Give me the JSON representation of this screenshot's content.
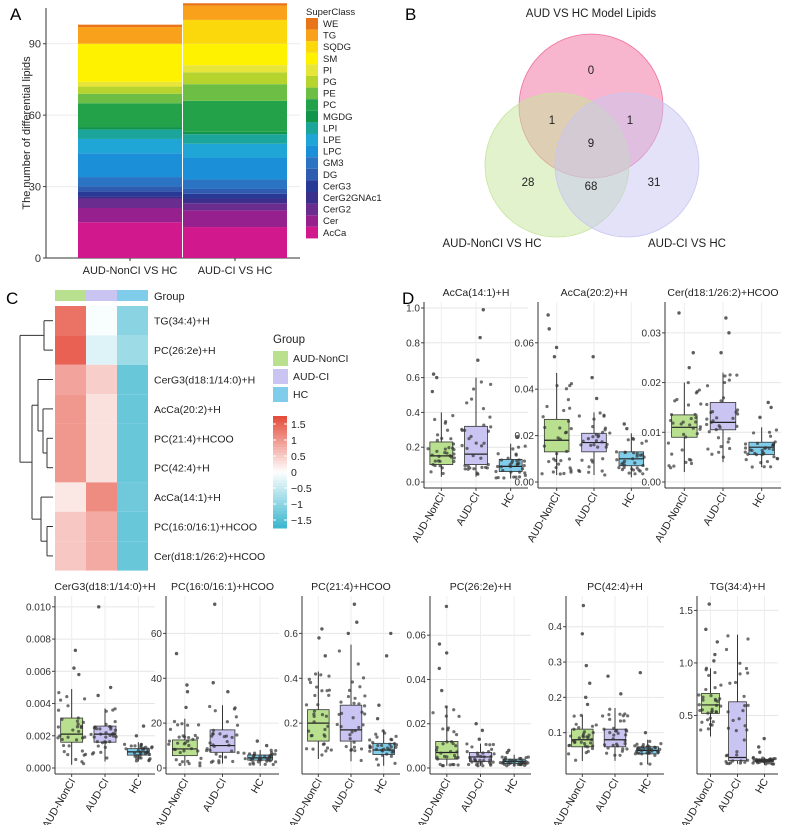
{
  "panel_labels": [
    "A",
    "B",
    "C",
    "D"
  ],
  "chart_data": [
    {
      "id": "A",
      "type": "bar",
      "subtype": "stacked",
      "ylabel": "The number of differential lipids",
      "xlabel": "",
      "ylim": [
        0,
        105
      ],
      "yticks": [
        0,
        30,
        60,
        90
      ],
      "categories": [
        "AUD-NonCI VS HC",
        "AUD-CI VS HC"
      ],
      "legend_title": "SuperClass",
      "legend_position": "right",
      "classes": [
        "WE",
        "TG",
        "SQDG",
        "SM",
        "PI",
        "PG",
        "PE",
        "PC",
        "MGDG",
        "LPI",
        "LPE",
        "LPC",
        "GM3",
        "DG",
        "CerG3",
        "CerG2GNAc1",
        "CerG2",
        "Cer",
        "AcCa"
      ],
      "colors": {
        "WE": "#E8751A",
        "TG": "#F9A11B",
        "SQDG": "#FBD80C",
        "SM": "#FFF200",
        "PI": "#E8E53A",
        "PG": "#B7D32E",
        "PE": "#6DBE45",
        "PC": "#23A24A",
        "MGDG": "#11954A",
        "LPI": "#1CA59B",
        "LPE": "#1FA6D6",
        "LPC": "#1C8FD9",
        "GM3": "#2A74C3",
        "DG": "#2F5CB1",
        "CerG3": "#283A95",
        "CerG2GNAc1": "#3B2F8C",
        "CerG2": "#6A2C8E",
        "Cer": "#96208D",
        "AcCa": "#D2188D"
      },
      "stack_order_bottom_to_top": [
        "AcCa",
        "Cer",
        "CerG2",
        "CerG2GNAc1",
        "CerG3",
        "DG",
        "GM3",
        "LPC",
        "LPE",
        "LPI",
        "MGDG",
        "PC",
        "PE",
        "PG",
        "PI",
        "SM",
        "SQDG",
        "TG",
        "WE"
      ],
      "series": [
        {
          "category": "AUD-NonCI VS HC",
          "values": {
            "AcCa": 15,
            "Cer": 6,
            "CerG2": 4,
            "CerG2GNAc1": 1,
            "CerG3": 2,
            "DG": 2,
            "GM3": 4,
            "LPC": 10,
            "LPE": 6,
            "LPI": 4,
            "MGDG": 1,
            "PC": 10,
            "PE": 4,
            "PG": 3,
            "PI": 2,
            "SM": 16,
            "SQDG": 0,
            "TG": 7,
            "WE": 1
          }
        },
        {
          "category": "AUD-CI VS HC",
          "values": {
            "AcCa": 13,
            "Cer": 7,
            "CerG2": 3,
            "CerG2GNAc1": 2,
            "CerG3": 2,
            "DG": 2,
            "GM3": 4,
            "LPC": 9,
            "LPE": 6,
            "LPI": 4,
            "MGDG": 1,
            "PC": 13,
            "PE": 7,
            "PG": 5,
            "PI": 3,
            "SM": 9,
            "SQDG": 10,
            "TG": 6,
            "WE": 1
          }
        }
      ]
    },
    {
      "id": "B",
      "type": "venn",
      "sets": [
        "AUD VS HC Model Lipids",
        "AUD-NonCI VS HC",
        "AUD-CI VS HC"
      ],
      "colors": [
        "#F06E9C",
        "#C5E59B",
        "#C8C6F2"
      ],
      "regions": [
        {
          "sets": [
            "AUD VS HC Model Lipids"
          ],
          "count": "0"
        },
        {
          "sets": [
            "AUD-NonCI VS HC"
          ],
          "count": "28"
        },
        {
          "sets": [
            "AUD-CI VS HC"
          ],
          "count": "31"
        },
        {
          "sets": [
            "AUD VS HC Model Lipids",
            "AUD-NonCI VS HC"
          ],
          "count": "1"
        },
        {
          "sets": [
            "AUD VS HC Model Lipids",
            "AUD-CI VS HC"
          ],
          "count": "1"
        },
        {
          "sets": [
            "AUD-NonCI VS HC",
            "AUD-CI VS HC"
          ],
          "count": "68"
        },
        {
          "sets": [
            "AUD VS HC Model Lipids",
            "AUD-NonCI VS HC",
            "AUD-CI VS HC"
          ],
          "count": "9"
        }
      ]
    },
    {
      "id": "C",
      "type": "heatmap",
      "column_annotation_title": "Group",
      "columns": [
        "AUD-NonCI",
        "AUD-CI",
        "HC"
      ],
      "column_colors": [
        "#B9E08F",
        "#C9C4F2",
        "#7FCDEB"
      ],
      "rows": [
        "TG(34:4)+H",
        "PC(26:2e)+H",
        "CerG3(d18:1/14:0)+H",
        "AcCa(20:2)+H",
        "PC(21:4)+HCOO",
        "PC(42:4)+H",
        "AcCa(14:1)+H",
        "PC(16:0/16:1)+HCOO",
        "Cer(d18:1/26:2)+HCOO"
      ],
      "values": [
        [
          1.15,
          -0.05,
          -0.9
        ],
        [
          1.3,
          -0.25,
          -0.75
        ],
        [
          0.75,
          0.4,
          -1.15
        ],
        [
          0.85,
          0.25,
          -1.15
        ],
        [
          0.85,
          0.25,
          -1.15
        ],
        [
          0.85,
          0.25,
          -1.15
        ],
        [
          0.2,
          0.95,
          -1.1
        ],
        [
          0.45,
          0.7,
          -1.15
        ],
        [
          0.45,
          0.7,
          -1.15
        ]
      ],
      "colorbar_ticks": [
        "1.5",
        "1",
        "0.5",
        "0",
        "−0.5",
        "−1",
        "−1.5"
      ],
      "colorbar_range": [
        -1.5,
        1.5
      ]
    },
    {
      "id": "D",
      "type": "boxplot",
      "groups": [
        "AUD-NonCI",
        "AUD-CI",
        "HC"
      ],
      "group_colors": [
        "#B9E08F",
        "#C9C4F2",
        "#7FCDEB"
      ],
      "plots": [
        {
          "title": "AcCa(14:1)+H",
          "ylim": [
            0,
            1.0
          ],
          "yticks": [
            "0.0",
            "0.2",
            "0.4",
            "0.6",
            "0.8",
            "1.0"
          ],
          "boxes": [
            {
              "min": 0.03,
              "q1": 0.1,
              "median": 0.15,
              "q3": 0.23,
              "max": 0.4
            },
            {
              "min": 0.03,
              "q1": 0.1,
              "median": 0.16,
              "q3": 0.32,
              "max": 0.6
            },
            {
              "min": 0.02,
              "q1": 0.06,
              "median": 0.09,
              "q3": 0.13,
              "max": 0.22
            }
          ],
          "outliers": [
            [
              0.52,
              0.6,
              0.62
            ],
            [
              0.7,
              0.83,
              0.99
            ],
            [
              0.26
            ]
          ]
        },
        {
          "title": "AcCa(20:2)+H",
          "ylim": [
            0,
            0.075
          ],
          "yticks": [
            "0.00",
            "0.02",
            "0.04",
            "0.06"
          ],
          "boxes": [
            {
              "min": 0.003,
              "q1": 0.013,
              "median": 0.018,
              "q3": 0.027,
              "max": 0.047
            },
            {
              "min": 0.003,
              "q1": 0.013,
              "median": 0.017,
              "q3": 0.021,
              "max": 0.03
            },
            {
              "min": 0.002,
              "q1": 0.007,
              "median": 0.01,
              "q3": 0.013,
              "max": 0.021
            }
          ],
          "outliers": [
            [
              0.054,
              0.058,
              0.066,
              0.072
            ],
            [
              0.036,
              0.045,
              0.054
            ],
            [
              0.023,
              0.025
            ]
          ]
        },
        {
          "title": "Cer(d18:1/26:2)+HCOO",
          "ylim": [
            0,
            0.035
          ],
          "yticks": [
            "0.00",
            "0.01",
            "0.02",
            "0.03"
          ],
          "boxes": [
            {
              "min": 0.002,
              "q1": 0.009,
              "median": 0.011,
              "q3": 0.0135,
              "max": 0.02
            },
            {
              "min": 0.004,
              "q1": 0.0105,
              "median": 0.012,
              "q3": 0.016,
              "max": 0.022
            },
            {
              "min": 0.003,
              "q1": 0.0055,
              "median": 0.007,
              "q3": 0.008,
              "max": 0.011
            }
          ],
          "outliers": [
            [
              0.023,
              0.026,
              0.034
            ],
            [
              0.026,
              0.03,
              0.033
            ],
            [
              0.013,
              0.015,
              0.016
            ]
          ]
        },
        {
          "title": "CerG3(d18:1/14:0)+H",
          "ylim": [
            0,
            0.0103
          ],
          "yticks": [
            "0.000",
            "0.002",
            "0.004",
            "0.006",
            "0.008",
            "0.010"
          ],
          "boxes": [
            {
              "min": 0.0002,
              "q1": 0.0016,
              "median": 0.0021,
              "q3": 0.0031,
              "max": 0.0049
            },
            {
              "min": 0.0004,
              "q1": 0.0016,
              "median": 0.0021,
              "q3": 0.0026,
              "max": 0.0037
            },
            {
              "min": 0.0004,
              "q1": 0.0008,
              "median": 0.001,
              "q3": 0.0012,
              "max": 0.0016
            }
          ],
          "outliers": [
            [
              0.0058,
              0.0062,
              0.0073
            ],
            [
              0.0045,
              0.005,
              0.01
            ],
            [
              0.002,
              0.0026
            ]
          ]
        },
        {
          "title": "PC(16:0/16:1)+HCOO",
          "ylim": [
            0,
            74
          ],
          "yticks": [
            "0",
            "20",
            "40",
            "60"
          ],
          "boxes": [
            {
              "min": 1,
              "q1": 5.5,
              "median": 8.5,
              "q3": 12.5,
              "max": 22
            },
            {
              "min": 2,
              "q1": 7,
              "median": 10,
              "q3": 17,
              "max": 28
            },
            {
              "min": 1,
              "q1": 3.5,
              "median": 4.5,
              "q3": 5.8,
              "max": 8
            }
          ],
          "outliers": [
            [
              27,
              34,
              37,
              51
            ],
            [
              34,
              38,
              73
            ],
            [
              10,
              12
            ]
          ]
        },
        {
          "title": "PC(21:4)+HCOO",
          "ylim": [
            0,
            0.74
          ],
          "yticks": [
            "0.2",
            "0.4",
            "0.6"
          ],
          "boxes": [
            {
              "min": 0.04,
              "q1": 0.12,
              "median": 0.2,
              "q3": 0.26,
              "max": 0.43
            },
            {
              "min": 0.03,
              "q1": 0.12,
              "median": 0.17,
              "q3": 0.28,
              "max": 0.55
            },
            {
              "min": 0.01,
              "q1": 0.06,
              "median": 0.08,
              "q3": 0.11,
              "max": 0.17
            }
          ],
          "outliers": [
            [
              0.5,
              0.58,
              0.62
            ],
            [
              0.6,
              0.65,
              0.73
            ],
            [
              0.22,
              0.28,
              0.5,
              0.6
            ]
          ]
        },
        {
          "title": "PC(26:2e)+H",
          "ylim": [
            0,
            0.075
          ],
          "yticks": [
            "0.00",
            "0.02",
            "0.04",
            "0.06"
          ],
          "boxes": [
            {
              "min": 0.001,
              "q1": 0.004,
              "median": 0.007,
              "q3": 0.012,
              "max": 0.028
            },
            {
              "min": 0.001,
              "q1": 0.003,
              "median": 0.005,
              "q3": 0.007,
              "max": 0.011
            },
            {
              "min": 0.001,
              "q1": 0.002,
              "median": 0.003,
              "q3": 0.004,
              "max": 0.006
            }
          ],
          "outliers": [
            [
              0.035,
              0.045,
              0.052,
              0.056,
              0.073
            ],
            [
              0.013,
              0.017,
              0.02
            ],
            [
              0.007,
              0.008
            ]
          ]
        },
        {
          "title": "PC(42:4)+H",
          "ylim": [
            0,
            0.47
          ],
          "yticks": [
            "0.1",
            "0.2",
            "0.3",
            "0.4"
          ],
          "boxes": [
            {
              "min": 0.02,
              "q1": 0.06,
              "median": 0.08,
              "q3": 0.11,
              "max": 0.15
            },
            {
              "min": 0.02,
              "q1": 0.06,
              "median": 0.08,
              "q3": 0.11,
              "max": 0.17
            },
            {
              "min": 0.01,
              "q1": 0.04,
              "median": 0.05,
              "q3": 0.06,
              "max": 0.08
            }
          ],
          "outliers": [
            [
              0.18,
              0.2,
              0.24,
              0.29,
              0.38,
              0.46
            ],
            [
              0.21,
              0.26
            ],
            [
              0.1,
              0.27
            ]
          ]
        },
        {
          "title": "TG(34:4)+H",
          "ylim": [
            0,
            1.58
          ],
          "yticks": [
            "0.5",
            "1.0",
            "1.5"
          ],
          "boxes": [
            {
              "min": 0.3,
              "q1": 0.52,
              "median": 0.6,
              "q3": 0.71,
              "max": 0.95
            },
            {
              "min": 0.04,
              "q1": 0.07,
              "median": 0.1,
              "q3": 0.63,
              "max": 1.27
            },
            {
              "min": 0.03,
              "q1": 0.06,
              "median": 0.07,
              "q3": 0.08,
              "max": 0.1
            }
          ],
          "outliers": [
            [
              1.02,
              1.08,
              1.2,
              1.32,
              1.56
            ],
            [],
            [
              0.15,
              0.2,
              0.28
            ]
          ]
        }
      ]
    }
  ]
}
